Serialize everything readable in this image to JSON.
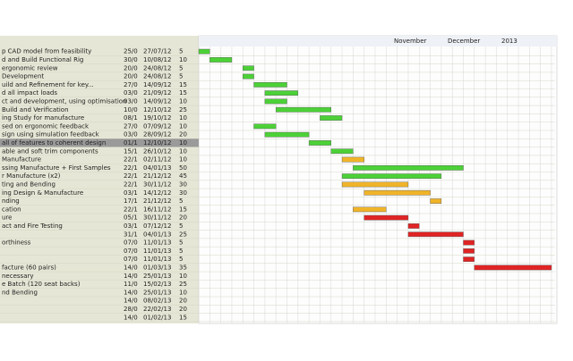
{
  "header": {
    "timeline": [
      "November",
      "December",
      "2013"
    ]
  },
  "table": {
    "rows": [
      {
        "name": "p CAD model from feasibility",
        "start": "25/0",
        "finish": "27/07/12",
        "duration": 5,
        "color": "#4cd137"
      },
      {
        "name": "d and Build Functional Rig",
        "start": "30/0",
        "finish": "10/08/12",
        "duration": 10,
        "color": "#4cd137"
      },
      {
        "name": "ergonomic review",
        "start": "20/0",
        "finish": "24/08/12",
        "duration": 5,
        "color": "#4cd137"
      },
      {
        "name": "Development",
        "start": "20/0",
        "finish": "24/08/12",
        "duration": 5,
        "color": "#4cd137"
      },
      {
        "name": "uild and Refinement for key...",
        "start": "27/0",
        "finish": "14/09/12",
        "duration": 15,
        "color": "#4cd137"
      },
      {
        "name": "d all impact loads",
        "start": "03/0",
        "finish": "21/09/12",
        "duration": 15,
        "color": "#4cd137"
      },
      {
        "name": "ct and development, using optimisation",
        "start": "03/0",
        "finish": "14/09/12",
        "duration": 10,
        "color": "#4cd137"
      },
      {
        "name": "Build and Verification",
        "start": "10/0",
        "finish": "12/10/12",
        "duration": 25,
        "color": "#4cd137"
      },
      {
        "name": "ing Study for manufacture",
        "start": "08/1",
        "finish": "19/10/12",
        "duration": 10,
        "color": "#4cd137"
      },
      {
        "name": "sed on ergonomic feedback",
        "start": "27/0",
        "finish": "07/09/12",
        "duration": 10,
        "color": "#4cd137"
      },
      {
        "name": "sign using simulation feedback",
        "start": "03/0",
        "finish": "28/09/12",
        "duration": 20,
        "color": "#4cd137"
      },
      {
        "name": "all of features to coherent design",
        "start": "01/1",
        "finish": "12/10/12",
        "duration": 10,
        "color": "#4cd137",
        "selected": true
      },
      {
        "name": "able and soft trim components",
        "start": "15/1",
        "finish": "26/10/12",
        "duration": 10,
        "color": "#4cd137"
      },
      {
        "name": "Manufacture",
        "start": "22/1",
        "finish": "02/11/12",
        "duration": 10,
        "color": "#f0b429"
      },
      {
        "name": "ssing Manufacture + First Samples",
        "start": "22/1",
        "finish": "04/01/13",
        "duration": 50,
        "color": "#4cd137"
      },
      {
        "name": "r Manufacture (x2)",
        "start": "22/1",
        "finish": "21/12/12",
        "duration": 45,
        "color": "#4cd137"
      },
      {
        "name": "ting and Bending",
        "start": "22/1",
        "finish": "30/11/12",
        "duration": 30,
        "color": "#f0b429"
      },
      {
        "name": "ing Design & Manufacture",
        "start": "03/1",
        "finish": "14/12/12",
        "duration": 30,
        "color": "#f0b429"
      },
      {
        "name": "nding",
        "start": "17/1",
        "finish": "21/12/12",
        "duration": 5,
        "color": "#f0b429"
      },
      {
        "name": "cation",
        "start": "22/1",
        "finish": "16/11/12",
        "duration": 15,
        "color": "#f0b429"
      },
      {
        "name": "ure",
        "start": "05/1",
        "finish": "30/11/12",
        "duration": 20,
        "color": "#e02424"
      },
      {
        "name": "act and Fire Testing",
        "start": "03/1",
        "finish": "07/12/12",
        "duration": 5,
        "color": "#e02424"
      },
      {
        "name": null,
        "start": "31/1",
        "finish": "04/01/13",
        "duration": 25,
        "color": "#e02424"
      },
      {
        "name": "orthiness",
        "start": "07/0",
        "finish": "11/01/13",
        "duration": 5,
        "color": "#e02424"
      },
      {
        "name": null,
        "start": "07/0",
        "finish": "11/01/13",
        "duration": 5,
        "color": "#e02424"
      },
      {
        "name": null,
        "start": "07/0",
        "finish": "11/01/13",
        "duration": 5,
        "color": "#e02424"
      },
      {
        "name": "facture (60 pairs)",
        "start": "14/0",
        "finish": "01/03/13",
        "duration": 35,
        "color": "#e02424"
      },
      {
        "name": "necessary",
        "start": "14/0",
        "finish": "25/01/13",
        "duration": 10
      },
      {
        "name": "e Batch (120 seat backs)",
        "start": "11/0",
        "finish": "15/02/13",
        "duration": 25
      },
      {
        "name": "nd Bending",
        "start": "14/0",
        "finish": "25/01/13",
        "duration": 10
      },
      {
        "name": null,
        "start": "14/0",
        "finish": "08/02/13",
        "duration": 20
      },
      {
        "name": null,
        "start": "28/0",
        "finish": "22/02/13",
        "duration": 20
      },
      {
        "name": null,
        "start": "14/0",
        "finish": "01/02/13",
        "duration": 15
      }
    ]
  }
}
